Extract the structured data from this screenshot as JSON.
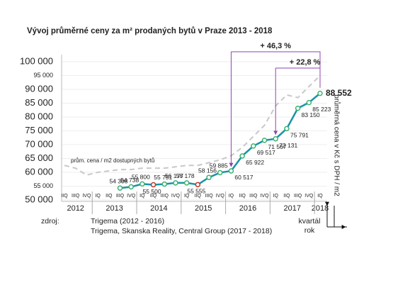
{
  "chart_data": {
    "type": "line",
    "title": "Vývoj průměrné ceny za m² prodaných bytů v Praze 2013 - 2018",
    "categories": [
      "IIQ",
      "IIIQ",
      "IVQ",
      "IQ",
      "IIQ",
      "IIIQ",
      "IVQ",
      "IQ",
      "IIQ",
      "IIIQ",
      "IVQ",
      "IQ",
      "IIQ",
      "IIIQ",
      "IVQ",
      "IQ",
      "IIQ",
      "IIIQ",
      "IVQ",
      "IQ",
      "IIQ",
      "IIIQ",
      "IVQ",
      "IQ"
    ],
    "year_groups": [
      {
        "label": "2012",
        "start": 0,
        "end": 2
      },
      {
        "label": "2013",
        "start": 3,
        "end": 6
      },
      {
        "label": "2014",
        "start": 7,
        "end": 10
      },
      {
        "label": "2015",
        "start": 11,
        "end": 14
      },
      {
        "label": "2016",
        "start": 15,
        "end": 18
      },
      {
        "label": "2017",
        "start": 19,
        "end": 22
      },
      {
        "label": "2018",
        "start": 23,
        "end": 23
      }
    ],
    "series": [
      {
        "name": "prům. cena / m2 dostupných bytů",
        "color": "#c8c8c8",
        "dashed": true,
        "values": [
          62500,
          61500,
          59000,
          60000,
          60500,
          61000,
          61000,
          61500,
          61500,
          61500,
          62000,
          62500,
          62500,
          63500,
          64500,
          66000,
          69000,
          73000,
          77000,
          84000,
          88000,
          87000,
          91000,
          95000
        ]
      },
      {
        "color": "#1a93a8",
        "marker_color": "#3cb371",
        "marker_edge_colors": [
          "#3cb371",
          "#3cb371",
          "#3cb371",
          "#c0392b",
          "#3cb371",
          "#3cb371",
          "#3cb371",
          "#c0392b",
          "#3cb371",
          "#3cb371",
          "#3cb371",
          "#3cb371",
          "#3cb371",
          "#3cb371",
          "#3cb371",
          "#3cb371",
          "#3cb371",
          "#3cb371",
          "#3cb371"
        ],
        "values": [
          null,
          null,
          null,
          null,
          null,
          54308,
          54738,
          55800,
          55500,
          55751,
          56177,
          56178,
          55555,
          58156,
          59885,
          60517,
          65922,
          69517,
          71567,
          72131,
          75791,
          83150,
          85223,
          88552
        ],
        "value_labels": [
          null,
          null,
          null,
          null,
          null,
          "54 308",
          "54 738",
          "55 800",
          "55 500",
          "55 751",
          "56 177",
          "56 178",
          "55 555",
          "58 156",
          "59 885",
          "60 517",
          "65 922",
          "69 517",
          "71 567",
          "72 131",
          "75 791",
          "83 150",
          "85 223",
          "88 552"
        ]
      }
    ],
    "ylim": [
      50000,
      100000
    ],
    "yticks": [
      {
        "value": 50000,
        "label": "50 000"
      },
      {
        "value": 55000,
        "label": "55 000"
      },
      {
        "value": 60000,
        "label": "60 000"
      },
      {
        "value": 65000,
        "label": "65 000"
      },
      {
        "value": 70000,
        "label": "70 000"
      },
      {
        "value": 75000,
        "label": "75 000"
      },
      {
        "value": 80000,
        "label": "80 000"
      },
      {
        "value": 85000,
        "label": "85 000"
      },
      {
        "value": 90000,
        "label": "90 000"
      },
      {
        "value": 95000,
        "label": "95 000"
      },
      {
        "value": 100000,
        "label": "100 000"
      }
    ],
    "grid": true,
    "y_label": "průměrná cena v Kč s DPH / m2",
    "x_labels": [
      "kvartál",
      "rok"
    ],
    "annotations": [
      {
        "text": "+ 46,3 %",
        "from": 15,
        "to": 23,
        "color": "#27a35a",
        "arrow_color": "#8e44ad"
      },
      {
        "text": "+ 22,8 %",
        "from": 19,
        "to": 23,
        "color": "#27a35a",
        "arrow_color": "#8e44ad"
      }
    ],
    "source_label": "zdroj:",
    "sources": [
      "Trigema (2012 - 2016)",
      "Trigema, Skanska Reality, Central Group (2017 - 2018)"
    ]
  }
}
